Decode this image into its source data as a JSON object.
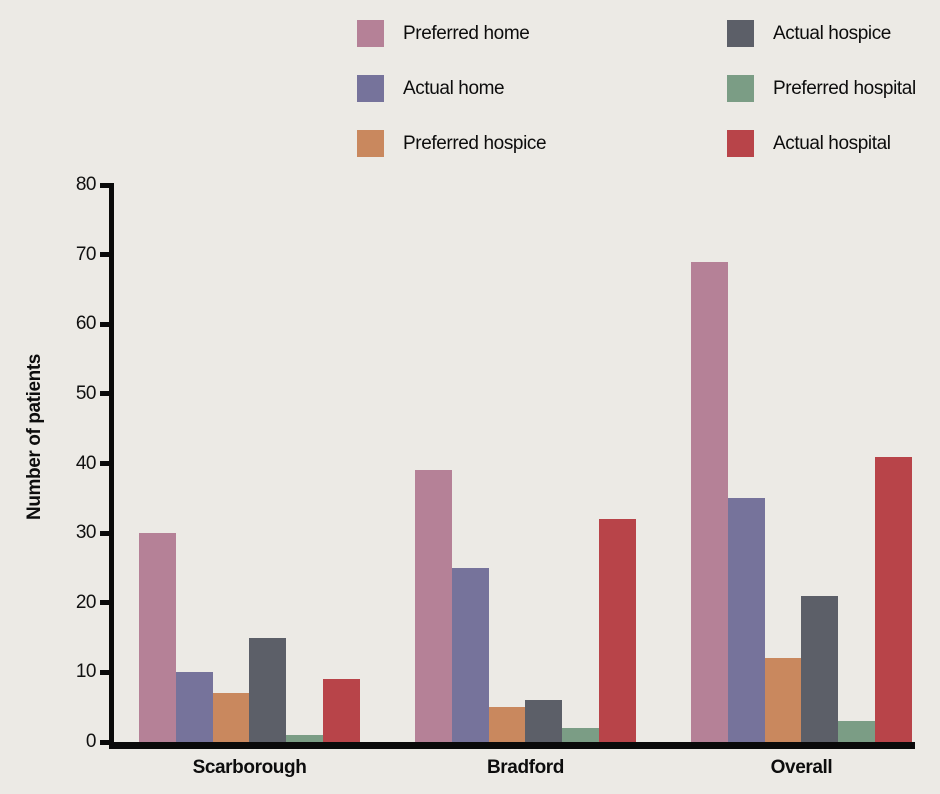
{
  "chart_data": {
    "type": "bar",
    "title": "",
    "xlabel": "",
    "ylabel": "Number of patients",
    "ylim": [
      0,
      80
    ],
    "yticks": [
      0,
      10,
      20,
      30,
      40,
      50,
      60,
      70,
      80
    ],
    "categories": [
      "Scarborough",
      "Bradford",
      "Overall"
    ],
    "series": [
      {
        "name": "Preferred home",
        "color": "#b58197",
        "values": [
          30,
          39,
          69
        ]
      },
      {
        "name": "Actual home",
        "color": "#76739b",
        "values": [
          10,
          25,
          35
        ]
      },
      {
        "name": "Preferred hospice",
        "color": "#c9885e",
        "values": [
          7,
          5,
          12
        ]
      },
      {
        "name": "Actual hospice",
        "color": "#5c5f68",
        "values": [
          15,
          6,
          21
        ]
      },
      {
        "name": "Preferred hospital",
        "color": "#7b9d85",
        "values": [
          1,
          2,
          3
        ]
      },
      {
        "name": "Actual hospital",
        "color": "#b84449",
        "values": [
          9,
          32,
          41
        ]
      }
    ],
    "legend_position": "top",
    "legend_columns": [
      [
        0,
        1,
        2
      ],
      [
        3,
        4,
        5
      ]
    ],
    "grid": false,
    "background_color": "#eceae5",
    "axis_color": "#0a0a0a"
  }
}
